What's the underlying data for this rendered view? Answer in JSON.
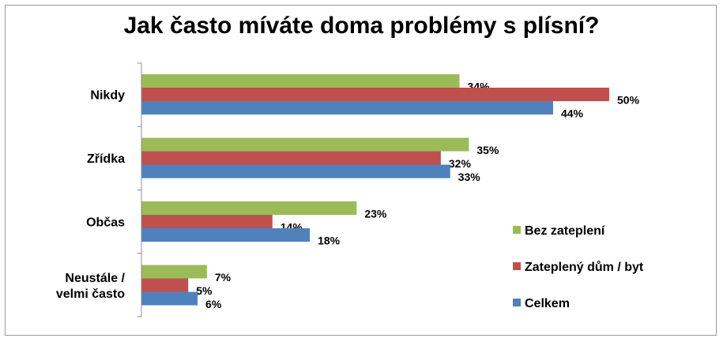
{
  "chart_data": {
    "type": "bar",
    "orientation": "horizontal",
    "title": "Jak často míváte doma problémy s plísní?",
    "categories": [
      [
        "Nikdy"
      ],
      [
        "Zřídka"
      ],
      [
        "Občas"
      ],
      [
        "Neustále /",
        "velmi často"
      ]
    ],
    "series": [
      {
        "name": "Bez zateplení",
        "color": "#9bbb59",
        "values": [
          34,
          35,
          23,
          7
        ]
      },
      {
        "name": "Zateplený dům / byt",
        "color": "#c0504d",
        "values": [
          50,
          32,
          14,
          5
        ]
      },
      {
        "name": "Celkem",
        "color": "#4f81bd",
        "values": [
          44,
          33,
          18,
          6
        ]
      }
    ],
    "value_suffix": "%",
    "xlim": [
      0,
      50
    ],
    "grid": false,
    "legend_position": "right"
  }
}
